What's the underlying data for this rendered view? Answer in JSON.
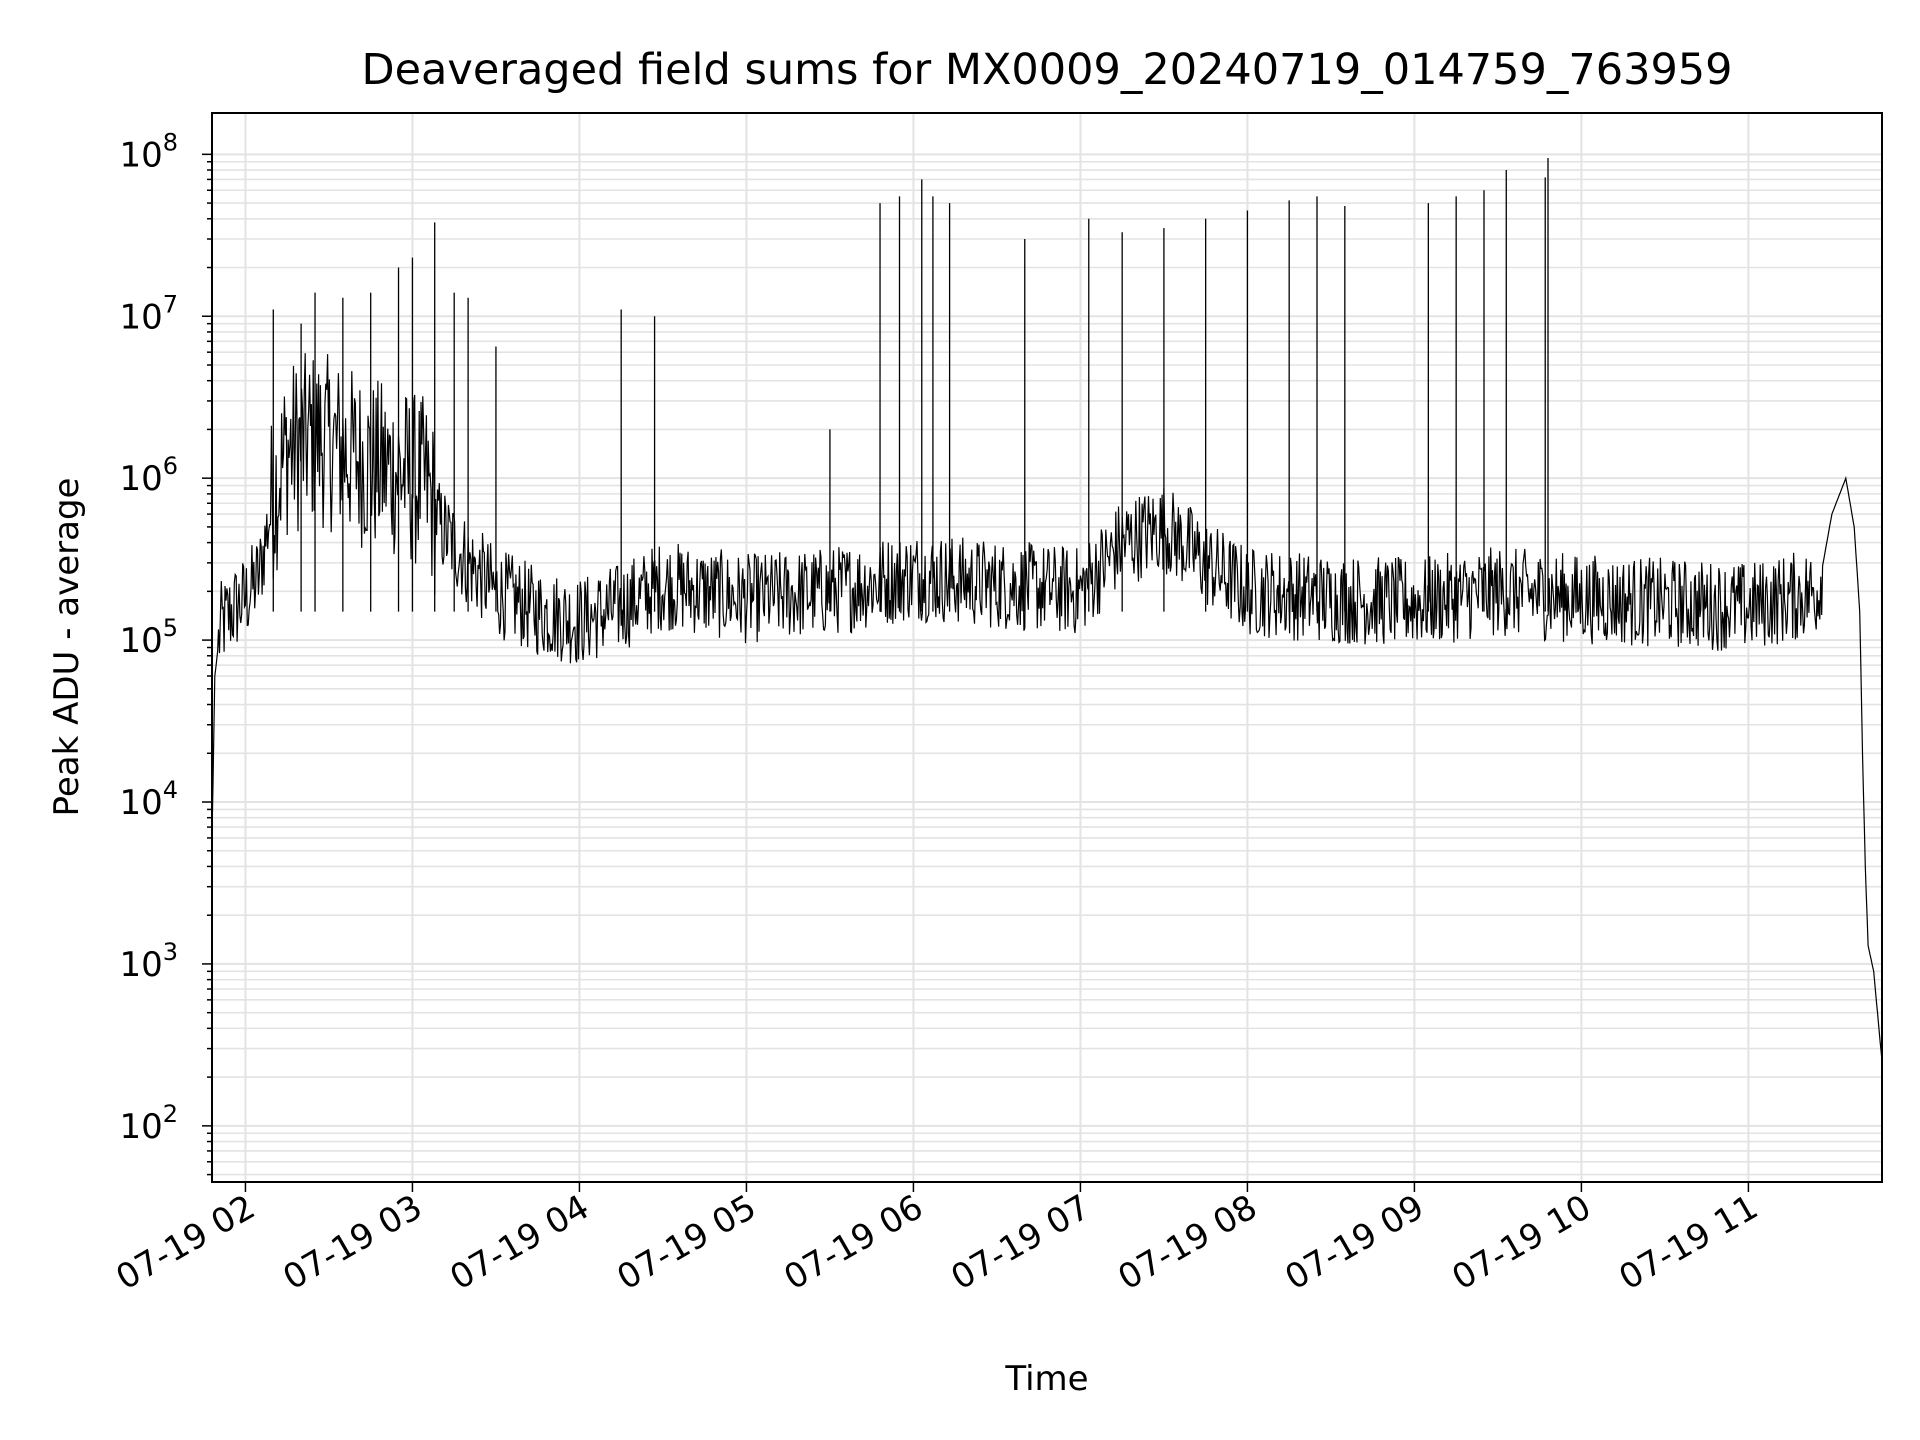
{
  "chart_data": {
    "type": "line",
    "title": "Deaveraged field sums for MX0009_20240719_014759_763959",
    "xlabel": "Time",
    "ylabel": "Peak ADU - average",
    "yscale": "log",
    "ylim": [
      45,
      180000000
    ],
    "xlim": [
      "2024-07-19 01:47:59",
      "2024-07-19 11:48:00"
    ],
    "grid": true,
    "x_ticks": [
      "2024-07-19 02:00",
      "2024-07-19 03:00",
      "2024-07-19 04:00",
      "2024-07-19 05:00",
      "2024-07-19 06:00",
      "2024-07-19 07:00",
      "2024-07-19 08:00",
      "2024-07-19 09:00",
      "2024-07-19 10:00",
      "2024-07-19 11:00"
    ],
    "x_tick_labels": [
      "07-19 02",
      "07-19 03",
      "07-19 04",
      "07-19 05",
      "07-19 06",
      "07-19 07",
      "07-19 08",
      "07-19 09",
      "07-19 10",
      "07-19 11"
    ],
    "y_ticks": [
      100,
      1000,
      10000,
      100000,
      1000000,
      10000000,
      100000000
    ],
    "y_tick_labels": [
      {
        "base": "10",
        "exp": "2"
      },
      {
        "base": "10",
        "exp": "3"
      },
      {
        "base": "10",
        "exp": "4"
      },
      {
        "base": "10",
        "exp": "5"
      },
      {
        "base": "10",
        "exp": "6"
      },
      {
        "base": "10",
        "exp": "7"
      },
      {
        "base": "10",
        "exp": "8"
      }
    ],
    "series": [
      {
        "color": "#000000",
        "points": [
          [
            "2024-07-19 01:48",
            6000
          ],
          [
            "2024-07-19 01:49",
            60000
          ],
          [
            "2024-07-19 01:51",
            120000
          ],
          [
            "2024-07-19 01:55",
            150000
          ],
          [
            "2024-07-19 02:00",
            180000
          ],
          [
            "2024-07-19 02:05",
            250000
          ],
          [
            "2024-07-19 02:10",
            800000
          ],
          [
            "2024-07-19 02:15",
            1500000
          ],
          [
            "2024-07-19 02:25",
            1800000
          ],
          [
            "2024-07-19 02:35",
            1500000
          ],
          [
            "2024-07-19 02:45",
            1200000
          ],
          [
            "2024-07-19 02:55",
            1100000
          ],
          [
            "2024-07-19 03:05",
            900000
          ],
          [
            "2024-07-19 03:10",
            500000
          ],
          [
            "2024-07-19 03:20",
            300000
          ],
          [
            "2024-07-19 03:30",
            200000
          ],
          [
            "2024-07-19 03:45",
            150000
          ],
          [
            "2024-07-19 04:00",
            130000
          ],
          [
            "2024-07-19 04:15",
            160000
          ],
          [
            "2024-07-19 04:30",
            220000
          ],
          [
            "2024-07-19 05:00",
            180000
          ],
          [
            "2024-07-19 05:30",
            200000
          ],
          [
            "2024-07-19 06:00",
            250000
          ],
          [
            "2024-07-19 06:30",
            220000
          ],
          [
            "2024-07-19 07:00",
            200000
          ],
          [
            "2024-07-19 07:15",
            400000
          ],
          [
            "2024-07-19 07:30",
            500000
          ],
          [
            "2024-07-19 07:45",
            300000
          ],
          [
            "2024-07-19 08:00",
            200000
          ],
          [
            "2024-07-19 08:30",
            180000
          ],
          [
            "2024-07-19 09:00",
            170000
          ],
          [
            "2024-07-19 09:30",
            200000
          ],
          [
            "2024-07-19 10:00",
            180000
          ],
          [
            "2024-07-19 10:30",
            170000
          ],
          [
            "2024-07-19 11:00",
            160000
          ],
          [
            "2024-07-19 11:25",
            200000
          ],
          [
            "2024-07-19 11:30",
            600000
          ],
          [
            "2024-07-19 11:35",
            1000000
          ],
          [
            "2024-07-19 11:38",
            500000
          ],
          [
            "2024-07-19 11:40",
            150000
          ],
          [
            "2024-07-19 11:41",
            20000
          ],
          [
            "2024-07-19 11:42",
            4000
          ],
          [
            "2024-07-19 11:43",
            1300
          ],
          [
            "2024-07-19 11:45",
            900
          ],
          [
            "2024-07-19 11:48",
            250
          ]
        ],
        "spikes": [
          [
            "2024-07-19 02:10",
            11000000
          ],
          [
            "2024-07-19 02:20",
            9000000
          ],
          [
            "2024-07-19 02:25",
            14000000
          ],
          [
            "2024-07-19 02:35",
            13000000
          ],
          [
            "2024-07-19 02:45",
            14000000
          ],
          [
            "2024-07-19 02:55",
            20000000
          ],
          [
            "2024-07-19 03:00",
            23000000
          ],
          [
            "2024-07-19 03:08",
            38000000
          ],
          [
            "2024-07-19 03:15",
            14000000
          ],
          [
            "2024-07-19 03:20",
            13000000
          ],
          [
            "2024-07-19 03:30",
            6500000
          ],
          [
            "2024-07-19 04:15",
            11000000
          ],
          [
            "2024-07-19 04:27",
            10000000
          ],
          [
            "2024-07-19 05:30",
            2000000
          ],
          [
            "2024-07-19 05:48",
            50000000
          ],
          [
            "2024-07-19 05:55",
            55000000
          ],
          [
            "2024-07-19 06:03",
            70000000
          ],
          [
            "2024-07-19 06:07",
            55000000
          ],
          [
            "2024-07-19 06:13",
            50000000
          ],
          [
            "2024-07-19 06:40",
            30000000
          ],
          [
            "2024-07-19 07:03",
            40000000
          ],
          [
            "2024-07-19 07:15",
            33000000
          ],
          [
            "2024-07-19 07:30",
            35000000
          ],
          [
            "2024-07-19 07:45",
            40000000
          ],
          [
            "2024-07-19 08:00",
            45000000
          ],
          [
            "2024-07-19 08:15",
            52000000
          ],
          [
            "2024-07-19 08:25",
            55000000
          ],
          [
            "2024-07-19 08:35",
            48000000
          ],
          [
            "2024-07-19 09:05",
            50000000
          ],
          [
            "2024-07-19 09:15",
            55000000
          ],
          [
            "2024-07-19 09:25",
            60000000
          ],
          [
            "2024-07-19 09:33",
            80000000
          ],
          [
            "2024-07-19 09:47",
            72000000
          ],
          [
            "2024-07-19 09:48",
            95000000
          ]
        ]
      }
    ]
  }
}
